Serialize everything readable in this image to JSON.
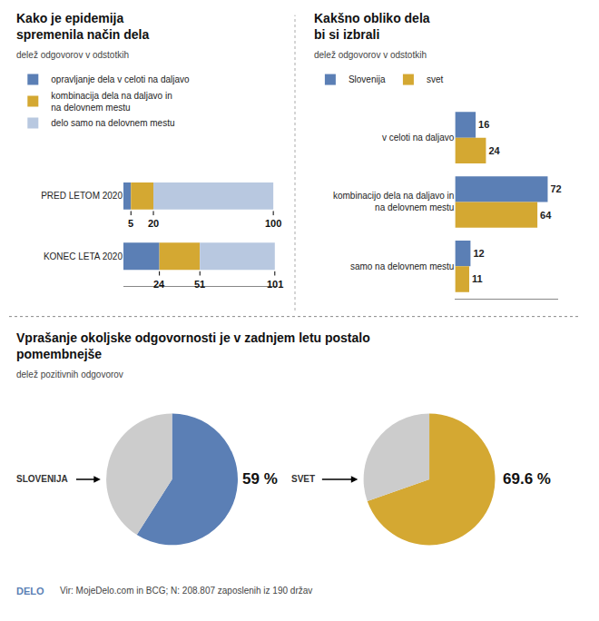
{
  "chart_data": [
    {
      "type": "bar",
      "orientation": "horizontal",
      "stacked": true,
      "title": "Kako je epidemija\nspremenila način dela",
      "subtitle": "delež odgovorov v odstotkih",
      "categories": [
        "PRED LETOM 2020",
        "KONEC LETA 2020"
      ],
      "series": [
        {
          "name": "opravljanje dela v celoti na daljavo",
          "color": "#5b7fb5",
          "values": [
            5,
            24
          ]
        },
        {
          "name": "kombinacija dela na daljavo in\nna delovnem mestu",
          "color": "#d4a832",
          "values": [
            15,
            27
          ]
        },
        {
          "name": "delo samo na delovnem mestu",
          "color": "#b8c8e0",
          "values": [
            80,
            50
          ]
        }
      ],
      "xlim": [
        0,
        103
      ],
      "tick_labels": "y",
      "legend": "upper left",
      "annotations": [
        {
          "category": "PRED LETOM 2020",
          "x": 5,
          "text": "5"
        },
        {
          "category": "PRED LETOM 2020",
          "x": 20,
          "text": "20"
        },
        {
          "category": "PRED LETOM 2020",
          "x": 100,
          "text": "100"
        },
        {
          "category": "KONEC LETA 2020",
          "x": 24,
          "text": "24"
        },
        {
          "category": "KONEC LETA 2020",
          "x": 51,
          "text": "51"
        },
        {
          "category": "KONEC LETA 2020",
          "x": 101,
          "text": "101"
        }
      ]
    },
    {
      "type": "bar",
      "orientation": "horizontal",
      "title": "Kakšno obliko dela\nbi si izbrali",
      "subtitle": "delež odgovorov v odstotkih",
      "categories": [
        "v celoti na daljavo",
        "kombinacijo dela na daljavo in\nna delovnem mestu",
        "samo na delovnem mestu"
      ],
      "series": [
        {
          "name": "Slovenija",
          "color": "#5b7fb5",
          "values": [
            16,
            72,
            12
          ]
        },
        {
          "name": "svet",
          "color": "#d4a832",
          "values": [
            24,
            64,
            11
          ]
        }
      ],
      "xlim": [
        0,
        80
      ],
      "data_labels": true,
      "tick_labels": "y",
      "legend": "upper left"
    },
    {
      "type": "pie",
      "title": "Vprašanje okoljske odgovornosti je v zadnjem letu postalo\npomembnejše",
      "subtitle": "delež pozitivnih odgovorov",
      "series": [
        {
          "name": "SLOVENIJA",
          "values": [
            59,
            41
          ],
          "colors": [
            "#5b7fb5",
            "#cccccc"
          ],
          "value_labels": [
            "59 %",
            null
          ]
        },
        {
          "name": "SVET",
          "values": [
            69.6,
            30.4
          ],
          "colors": [
            "#d4a832",
            "#cccccc"
          ],
          "value_labels": [
            "69.6 %",
            null
          ]
        }
      ],
      "annotations": [
        {
          "text": "DELO",
          "color": "#5b7fb5"
        },
        {
          "text": "Vir: MojeDelo.com in BCG; N: 208.807 zaposlenih iz 190 držav"
        }
      ]
    }
  ]
}
